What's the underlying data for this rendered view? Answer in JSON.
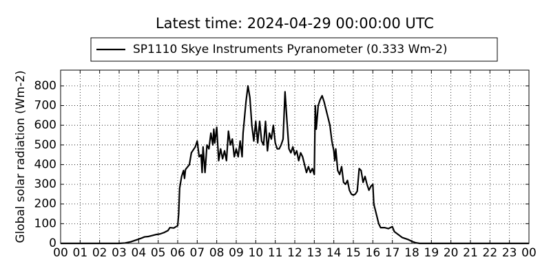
{
  "chart_data": {
    "type": "line",
    "title": "Latest time: 2024-04-29 00:00:00 UTC",
    "y_label": "Global solar radiation (Wm-2)",
    "x": [
      0,
      3,
      3.3,
      3.6,
      3.9,
      4.1,
      4.3,
      4.5,
      4.7,
      4.9,
      5.1,
      5.3,
      5.5,
      5.6,
      5.8,
      6,
      6.05,
      6.1,
      6.2,
      6.3,
      6.35,
      6.4,
      6.6,
      6.7,
      6.9,
      7,
      7.1,
      7.2,
      7.25,
      7.3,
      7.4,
      7.5,
      7.6,
      7.7,
      7.8,
      7.85,
      7.9,
      8,
      8.1,
      8.2,
      8.3,
      8.4,
      8.5,
      8.6,
      8.7,
      8.8,
      8.9,
      9,
      9.1,
      9.2,
      9.3,
      9.35,
      9.5,
      9.6,
      9.7,
      9.8,
      9.9,
      10,
      10.1,
      10.2,
      10.3,
      10.4,
      10.5,
      10.6,
      10.7,
      10.8,
      10.9,
      11,
      11.1,
      11.2,
      11.3,
      11.4,
      11.5,
      11.6,
      11.7,
      11.8,
      11.9,
      12,
      12.1,
      12.2,
      12.3,
      12.4,
      12.5,
      12.6,
      12.7,
      12.8,
      12.9,
      13,
      13.05,
      13.1,
      13.2,
      13.3,
      13.4,
      13.5,
      13.6,
      13.7,
      13.8,
      13.9,
      14,
      14.05,
      14.1,
      14.2,
      14.3,
      14.4,
      14.5,
      14.6,
      14.7,
      14.8,
      14.9,
      15,
      15.1,
      15.2,
      15.3,
      15.4,
      15.5,
      15.6,
      15.7,
      15.8,
      15.9,
      16,
      16.05,
      16.2,
      16.3,
      16.4,
      16.6,
      16.8,
      17,
      17.1,
      17.3,
      17.5,
      17.8,
      18,
      18.2,
      18.4,
      24
    ],
    "series": [
      {
        "name": "SP1110 Skye Instruments Pyranometer (0.333 Wm-2)",
        "color": "#000000",
        "values": [
          0,
          0,
          2,
          8,
          18,
          25,
          33,
          35,
          40,
          45,
          48,
          55,
          65,
          80,
          78,
          90,
          150,
          280,
          340,
          370,
          330,
          375,
          400,
          460,
          490,
          520,
          440,
          450,
          360,
          490,
          360,
          500,
          480,
          560,
          500,
          580,
          510,
          590,
          420,
          480,
          430,
          470,
          420,
          570,
          500,
          530,
          440,
          480,
          440,
          520,
          440,
          560,
          720,
          800,
          740,
          600,
          520,
          620,
          510,
          620,
          520,
          500,
          620,
          470,
          560,
          530,
          600,
          510,
          480,
          480,
          500,
          530,
          770,
          620,
          480,
          460,
          490,
          450,
          470,
          420,
          460,
          440,
          400,
          360,
          390,
          360,
          380,
          350,
          700,
          580,
          700,
          730,
          750,
          720,
          680,
          640,
          600,
          520,
          470,
          420,
          480,
          370,
          350,
          390,
          310,
          300,
          320,
          270,
          250,
          245,
          250,
          265,
          380,
          370,
          310,
          340,
          300,
          270,
          290,
          300,
          200,
          140,
          100,
          80,
          80,
          75,
          85,
          60,
          45,
          30,
          20,
          10,
          3,
          0,
          0
        ]
      }
    ],
    "xlim": [
      0,
      24
    ],
    "xticks": [
      {
        "value": 0,
        "label": "00"
      },
      {
        "value": 1,
        "label": "01"
      },
      {
        "value": 2,
        "label": "02"
      },
      {
        "value": 3,
        "label": "03"
      },
      {
        "value": 4,
        "label": "04"
      },
      {
        "value": 5,
        "label": "05"
      },
      {
        "value": 6,
        "label": "06"
      },
      {
        "value": 7,
        "label": "07"
      },
      {
        "value": 8,
        "label": "08"
      },
      {
        "value": 9,
        "label": "09"
      },
      {
        "value": 10,
        "label": "10"
      },
      {
        "value": 11,
        "label": "11"
      },
      {
        "value": 12,
        "label": "12"
      },
      {
        "value": 13,
        "label": "13"
      },
      {
        "value": 14,
        "label": "14"
      },
      {
        "value": 15,
        "label": "15"
      },
      {
        "value": 16,
        "label": "16"
      },
      {
        "value": 17,
        "label": "17"
      },
      {
        "value": 18,
        "label": "18"
      },
      {
        "value": 19,
        "label": "19"
      },
      {
        "value": 20,
        "label": "20"
      },
      {
        "value": 21,
        "label": "21"
      },
      {
        "value": 22,
        "label": "22"
      },
      {
        "value": 23,
        "label": "23"
      },
      {
        "value": 24,
        "label": "00"
      }
    ],
    "ylim": [
      0,
      880
    ],
    "yticks": [
      0,
      100,
      200,
      300,
      400,
      500,
      600,
      700,
      800
    ],
    "grid": true,
    "legend": "top"
  }
}
